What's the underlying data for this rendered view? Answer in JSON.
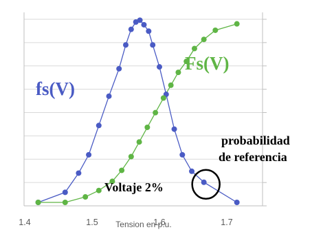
{
  "chart_data": {
    "type": "line",
    "title": "",
    "xlabel": "Tension en p.u.",
    "ylabel": "",
    "xlim": [
      1.4,
      1.75
    ],
    "ylim": [
      0,
      1
    ],
    "grid": "horizontal",
    "x_ticks": [
      "1.4",
      "1.5",
      "1.6",
      "1.7"
    ],
    "series": [
      {
        "name": "fs(V)",
        "color": "#4a5bc4",
        "x": [
          1.42,
          1.46,
          1.48,
          1.495,
          1.51,
          1.525,
          1.54,
          1.55,
          1.558,
          1.565,
          1.571,
          1.577,
          1.584,
          1.59,
          1.6,
          1.61,
          1.622,
          1.634,
          1.648,
          1.666,
          1.715
        ],
        "y": [
          0.0,
          0.055,
          0.16,
          0.26,
          0.42,
          0.58,
          0.73,
          0.86,
          0.945,
          0.985,
          0.995,
          0.97,
          0.935,
          0.86,
          0.74,
          0.59,
          0.4,
          0.26,
          0.17,
          0.11,
          0.0
        ]
      },
      {
        "name": "Fs(V)",
        "color": "#5fb545",
        "x": [
          1.42,
          1.46,
          1.49,
          1.51,
          1.53,
          1.544,
          1.558,
          1.57,
          1.582,
          1.594,
          1.606,
          1.617,
          1.628,
          1.64,
          1.652,
          1.666,
          1.683,
          1.715
        ],
        "y": [
          0.0,
          0.0,
          0.03,
          0.065,
          0.115,
          0.175,
          0.25,
          0.33,
          0.41,
          0.49,
          0.57,
          0.64,
          0.71,
          0.77,
          0.84,
          0.89,
          0.94,
          0.975
        ]
      }
    ],
    "annotations": {
      "fs_label": "fs(V)",
      "Fs_label": "Fs(V)",
      "voltage_label": "Voltaje 2%",
      "reference_line1": "probabilidad",
      "reference_line2": "de referencia"
    },
    "highlight_point": {
      "series": "fs(V)",
      "x": 1.666,
      "y": 0.11
    }
  }
}
